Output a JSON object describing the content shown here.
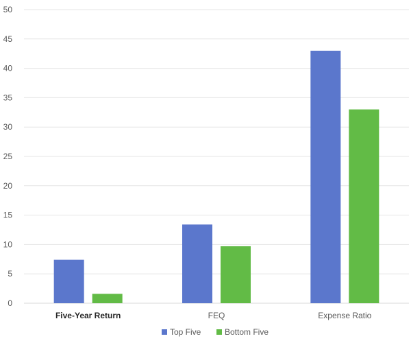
{
  "chart_data": {
    "type": "bar",
    "categories": [
      "Five-Year Return",
      "FEQ",
      "Expense Ratio"
    ],
    "series": [
      {
        "name": "Top Five",
        "color": "#5B77CC",
        "values": [
          7.4,
          13.4,
          43
        ]
      },
      {
        "name": "Bottom Five",
        "color": "#62BB46",
        "values": [
          1.6,
          9.7,
          33
        ]
      }
    ],
    "ylim": [
      0,
      50
    ],
    "yticks": [
      0,
      5,
      10,
      15,
      20,
      25,
      30,
      35,
      40,
      45,
      50
    ],
    "grid": true,
    "legend_position": "bottom"
  }
}
